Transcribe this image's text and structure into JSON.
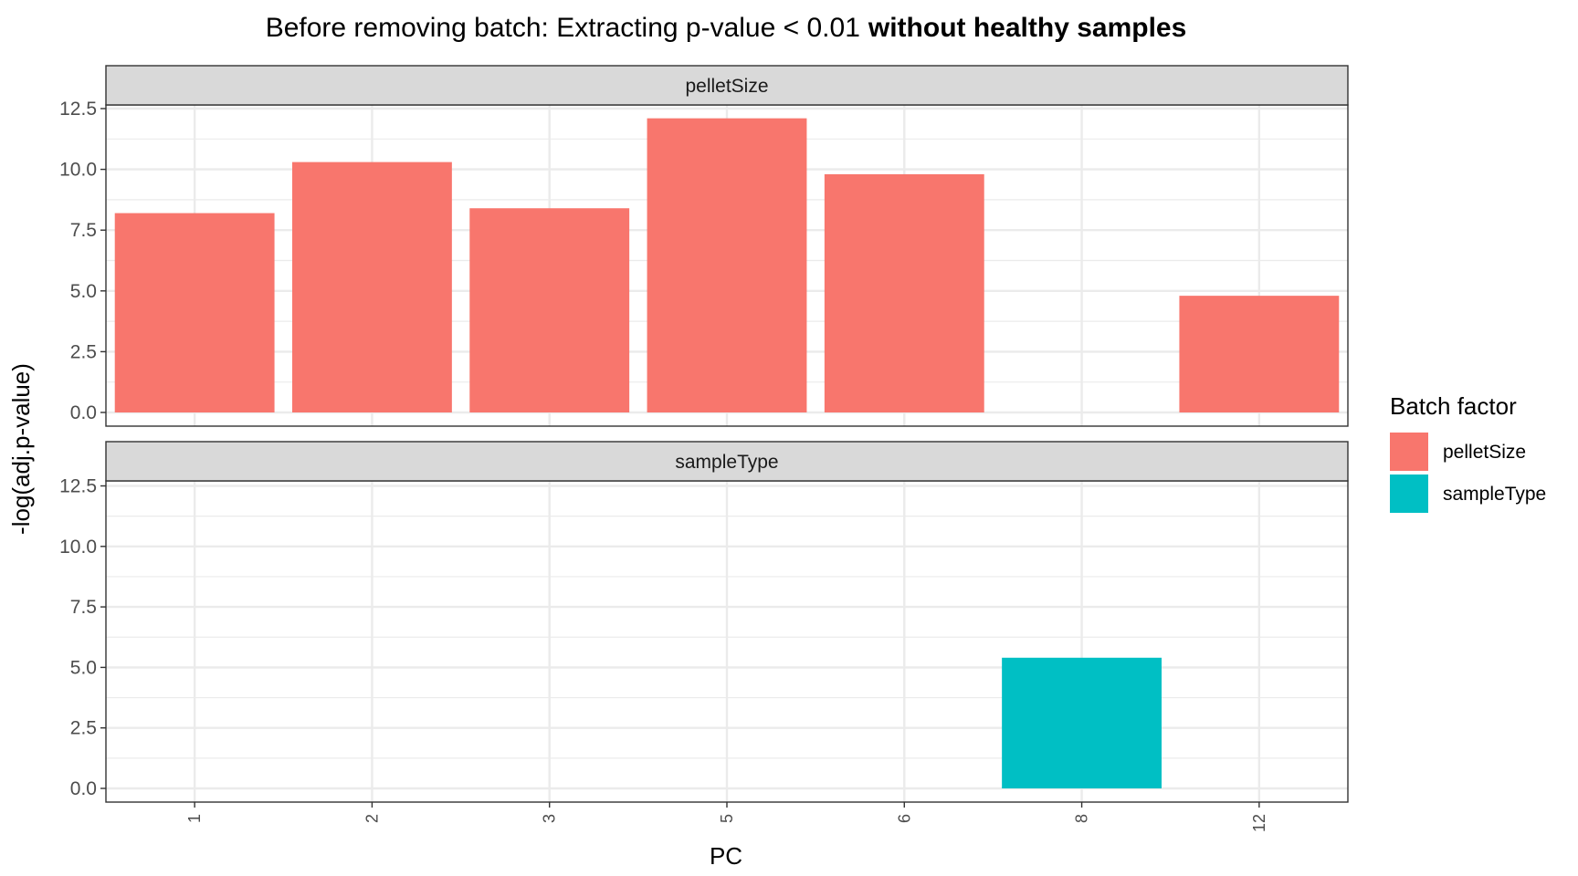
{
  "chart_data": {
    "type": "bar",
    "title": "Before removing batch: Extracting p-value < 0.01",
    "title_bold": "without healthy samples",
    "xlabel": "PC",
    "ylabel": "-log(adj.p-value)",
    "categories": [
      "1",
      "2",
      "3",
      "5",
      "6",
      "8",
      "12"
    ],
    "ylim": [
      0,
      12.5
    ],
    "yticks": [
      "0.0",
      "2.5",
      "5.0",
      "7.5",
      "10.0",
      "12.5"
    ],
    "grid": true,
    "legend": {
      "title": "Batch factor",
      "position": "right",
      "entries": [
        {
          "label": "pelletSize",
          "color": "#F8766D"
        },
        {
          "label": "sampleType",
          "color": "#00BFC4"
        }
      ]
    },
    "facets": [
      "pelletSize",
      "sampleType"
    ],
    "series": [
      {
        "name": "pelletSize",
        "color": "#F8766D",
        "facet": "pelletSize",
        "values": [
          8.2,
          10.3,
          8.4,
          12.1,
          9.8,
          null,
          4.8
        ]
      },
      {
        "name": "sampleType",
        "color": "#00BFC4",
        "facet": "sampleType",
        "values": [
          null,
          null,
          null,
          null,
          null,
          5.4,
          null
        ]
      }
    ]
  }
}
